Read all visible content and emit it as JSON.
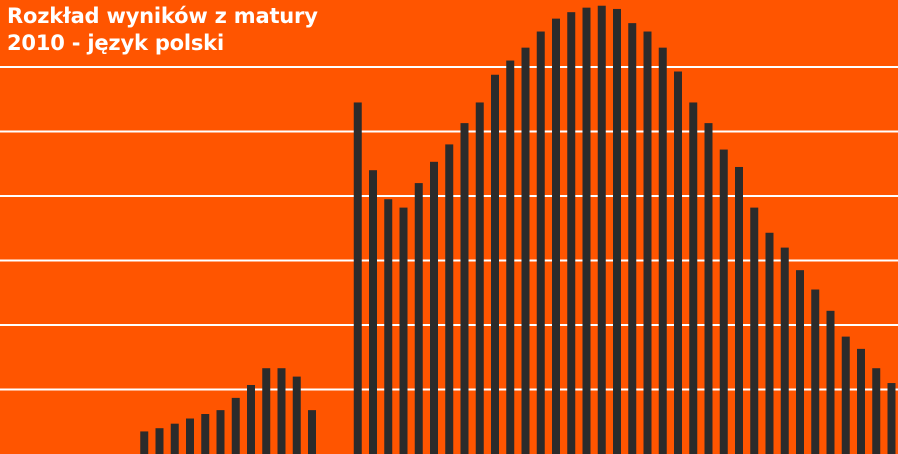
{
  "title_line1": "Rozkład wyników z matury",
  "title_line2": "2010 - język polski",
  "colors": {
    "background": "#ff5500",
    "bar": "#2b2b2b",
    "grid": "#ffffff",
    "title": "#ffffff"
  },
  "chart_data": {
    "type": "bar",
    "title": "Rozkład wyników z matury 2010 - język polski",
    "xlabel": "",
    "ylabel": "",
    "grid": true,
    "x_ticks_shown": false,
    "y_ticks_shown": false,
    "ylim": [
      0,
      7
    ],
    "y_grid_lines": [
      1,
      2,
      3,
      4,
      5,
      6
    ],
    "categories": [
      "0",
      "1",
      "2",
      "3",
      "4",
      "5",
      "6",
      "7",
      "8",
      "9",
      "10",
      "11",
      "12",
      "13",
      "14",
      "15",
      "16",
      "17",
      "18",
      "19",
      "20",
      "21",
      "22",
      "23",
      "24",
      "25",
      "26",
      "27",
      "28",
      "29",
      "30",
      "31",
      "32",
      "33",
      "34",
      "35",
      "36",
      "37",
      "38",
      "39",
      "40",
      "41",
      "42",
      "43",
      "44",
      "45",
      "46",
      "47",
      "48",
      "49",
      "50",
      "51",
      "52",
      "53",
      "54",
      "55",
      "56",
      "57",
      "58",
      "59",
      "60",
      "61",
      "62",
      "63",
      "64",
      "65",
      "66",
      "67",
      "68",
      "69",
      "70",
      "71",
      "72",
      "73",
      "74",
      "75",
      "76",
      "77",
      "78",
      "79",
      "80",
      "81",
      "82",
      "83",
      "84",
      "85",
      "86",
      "87",
      "88",
      "89",
      "90",
      "91",
      "92",
      "93",
      "94",
      "95",
      "96",
      "97",
      "98",
      "99",
      "100"
    ],
    "values": [
      0,
      0,
      0,
      0,
      0,
      0.35,
      0.4,
      0.47,
      0.55,
      0.62,
      0.68,
      0.87,
      1.07,
      1.33,
      1.33,
      1.2,
      0.68,
      0,
      0,
      5.45,
      4.4,
      3.95,
      3.82,
      4.2,
      4.53,
      4.8,
      5.13,
      5.45,
      5.88,
      6.1,
      6.3,
      6.55,
      6.75,
      6.85,
      6.92,
      6.95,
      6.9,
      6.68,
      6.55,
      6.3,
      5.93,
      5.45,
      5.13,
      4.72,
      4.45,
      3.82,
      3.43,
      3.2,
      2.85,
      2.55,
      2.22,
      1.82,
      1.63,
      1.33,
      1.1,
      0.98,
      0.72,
      0.6,
      0.45,
      0.37,
      0,
      0,
      0,
      0,
      0,
      0,
      0,
      0,
      0,
      0,
      0,
      0,
      0,
      0,
      0,
      0,
      0,
      0,
      0,
      0,
      0,
      0,
      0,
      0,
      0,
      0,
      0,
      0,
      0,
      0,
      0,
      0,
      0,
      0,
      0,
      0,
      0,
      0,
      0,
      0,
      0
    ]
  }
}
